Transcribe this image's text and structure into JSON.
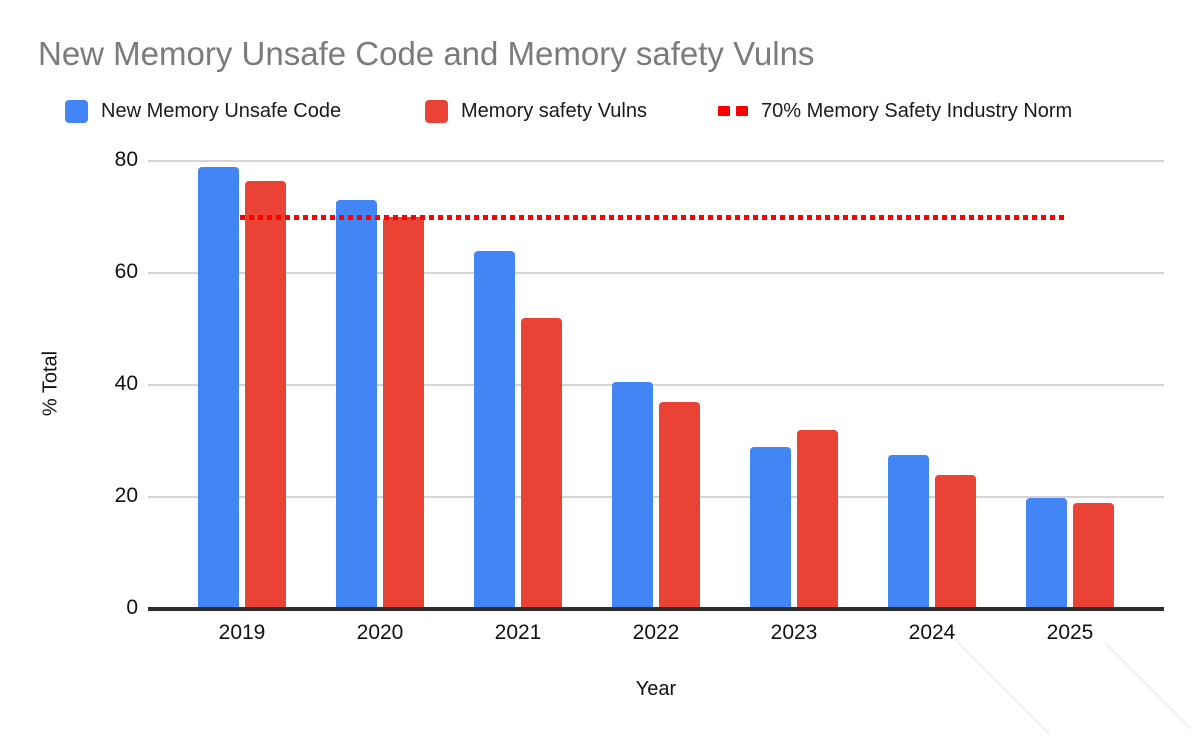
{
  "title": "New Memory Unsafe Code and Memory safety Vulns",
  "legend": {
    "items": [
      {
        "label": "New Memory Unsafe Code",
        "swatch": "square",
        "color": "#4285F4"
      },
      {
        "label": "Memory safety Vulns",
        "swatch": "square",
        "color": "#EA4335"
      },
      {
        "label": "70% Memory Safety Industry Norm",
        "swatch": "dashes",
        "color": "#FF0000"
      }
    ]
  },
  "axes": {
    "xlabel": "Year",
    "ylabel": "% Total"
  },
  "chart_data": {
    "type": "bar",
    "title": "New Memory Unsafe Code and Memory safety Vulns",
    "categories": [
      "2019",
      "2020",
      "2021",
      "2022",
      "2023",
      "2024",
      "2025"
    ],
    "series": [
      {
        "name": "New Memory Unsafe Code",
        "color": "#4285F4",
        "values": [
          79,
          73,
          64,
          40.5,
          29,
          27.5,
          19.8
        ]
      },
      {
        "name": "Memory safety Vulns",
        "color": "#EA4335",
        "values": [
          76.5,
          70,
          52,
          37,
          32,
          24,
          19
        ]
      }
    ],
    "reference_line": {
      "label": "70% Memory Safety Industry Norm",
      "value": 70,
      "color": "#FF0000",
      "style": "dotted"
    },
    "xlabel": "Year",
    "ylabel": "% Total",
    "ylim": [
      0,
      80
    ],
    "yticks": [
      0,
      20,
      40,
      60,
      80
    ],
    "grid": true,
    "legend_position": "top"
  },
  "colors": {
    "background": "#ffffff",
    "title_text": "#7b7b7b",
    "axis_text": "#111111",
    "gridline": "#d5d5d8",
    "axis_line": "#2e2e2e",
    "series_blue": "#4285F4",
    "series_red": "#EA4335",
    "reference_red": "#FF0000"
  }
}
